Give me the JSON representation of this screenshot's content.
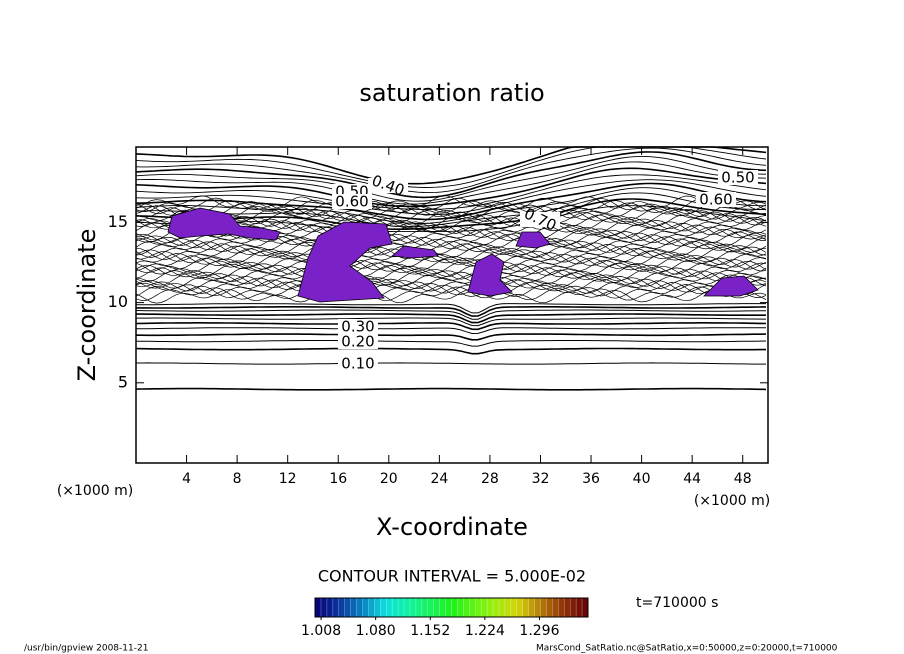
{
  "chart_data": {
    "type": "contour",
    "title": "saturation ratio",
    "x_label": "X-coordinate",
    "y_label": "Z-coordinate",
    "x_unit": "(×1000 m)",
    "y_unit": "(×1000 m)",
    "xlim": [
      0,
      50
    ],
    "xticks": [
      4,
      8,
      12,
      16,
      20,
      24,
      28,
      32,
      36,
      40,
      44,
      48
    ],
    "ylim": [
      0,
      19.7
    ],
    "yticks": [
      5,
      10,
      15
    ],
    "contour_labels": [
      {
        "value": 0.1,
        "label": "0.10"
      },
      {
        "value": 0.2,
        "label": "0.20"
      },
      {
        "value": 0.3,
        "label": "0.30"
      },
      {
        "value": 0.4,
        "label": "0.40"
      },
      {
        "value": 0.5,
        "label": "0.50"
      },
      {
        "value": 0.6,
        "label": "0.60"
      },
      {
        "value": 0.5,
        "label": "0.50"
      },
      {
        "value": 0.6,
        "label": "0.60"
      },
      {
        "value": 0.7,
        "label": "0.70"
      }
    ],
    "contour_interval": "CONTOUR INTERVAL = 5.000E-02",
    "fill_color": "#7a22c8",
    "clim": [
      1.0,
      1.36
    ],
    "cticks": [
      {
        "value": 1.008,
        "label": "1.008"
      },
      {
        "value": 1.08,
        "label": "1.080"
      },
      {
        "value": 1.152,
        "label": "1.152"
      },
      {
        "value": 1.224,
        "label": "1.224"
      },
      {
        "value": 1.296,
        "label": "1.296"
      }
    ],
    "time_label": "t=710000 s",
    "footer_left": "/usr/bin/gpview   2008-11-21",
    "footer_right": "MarsCond_SatRatio.nc@SatRatio,x=0:50000,z=0:20000,t=710000"
  }
}
